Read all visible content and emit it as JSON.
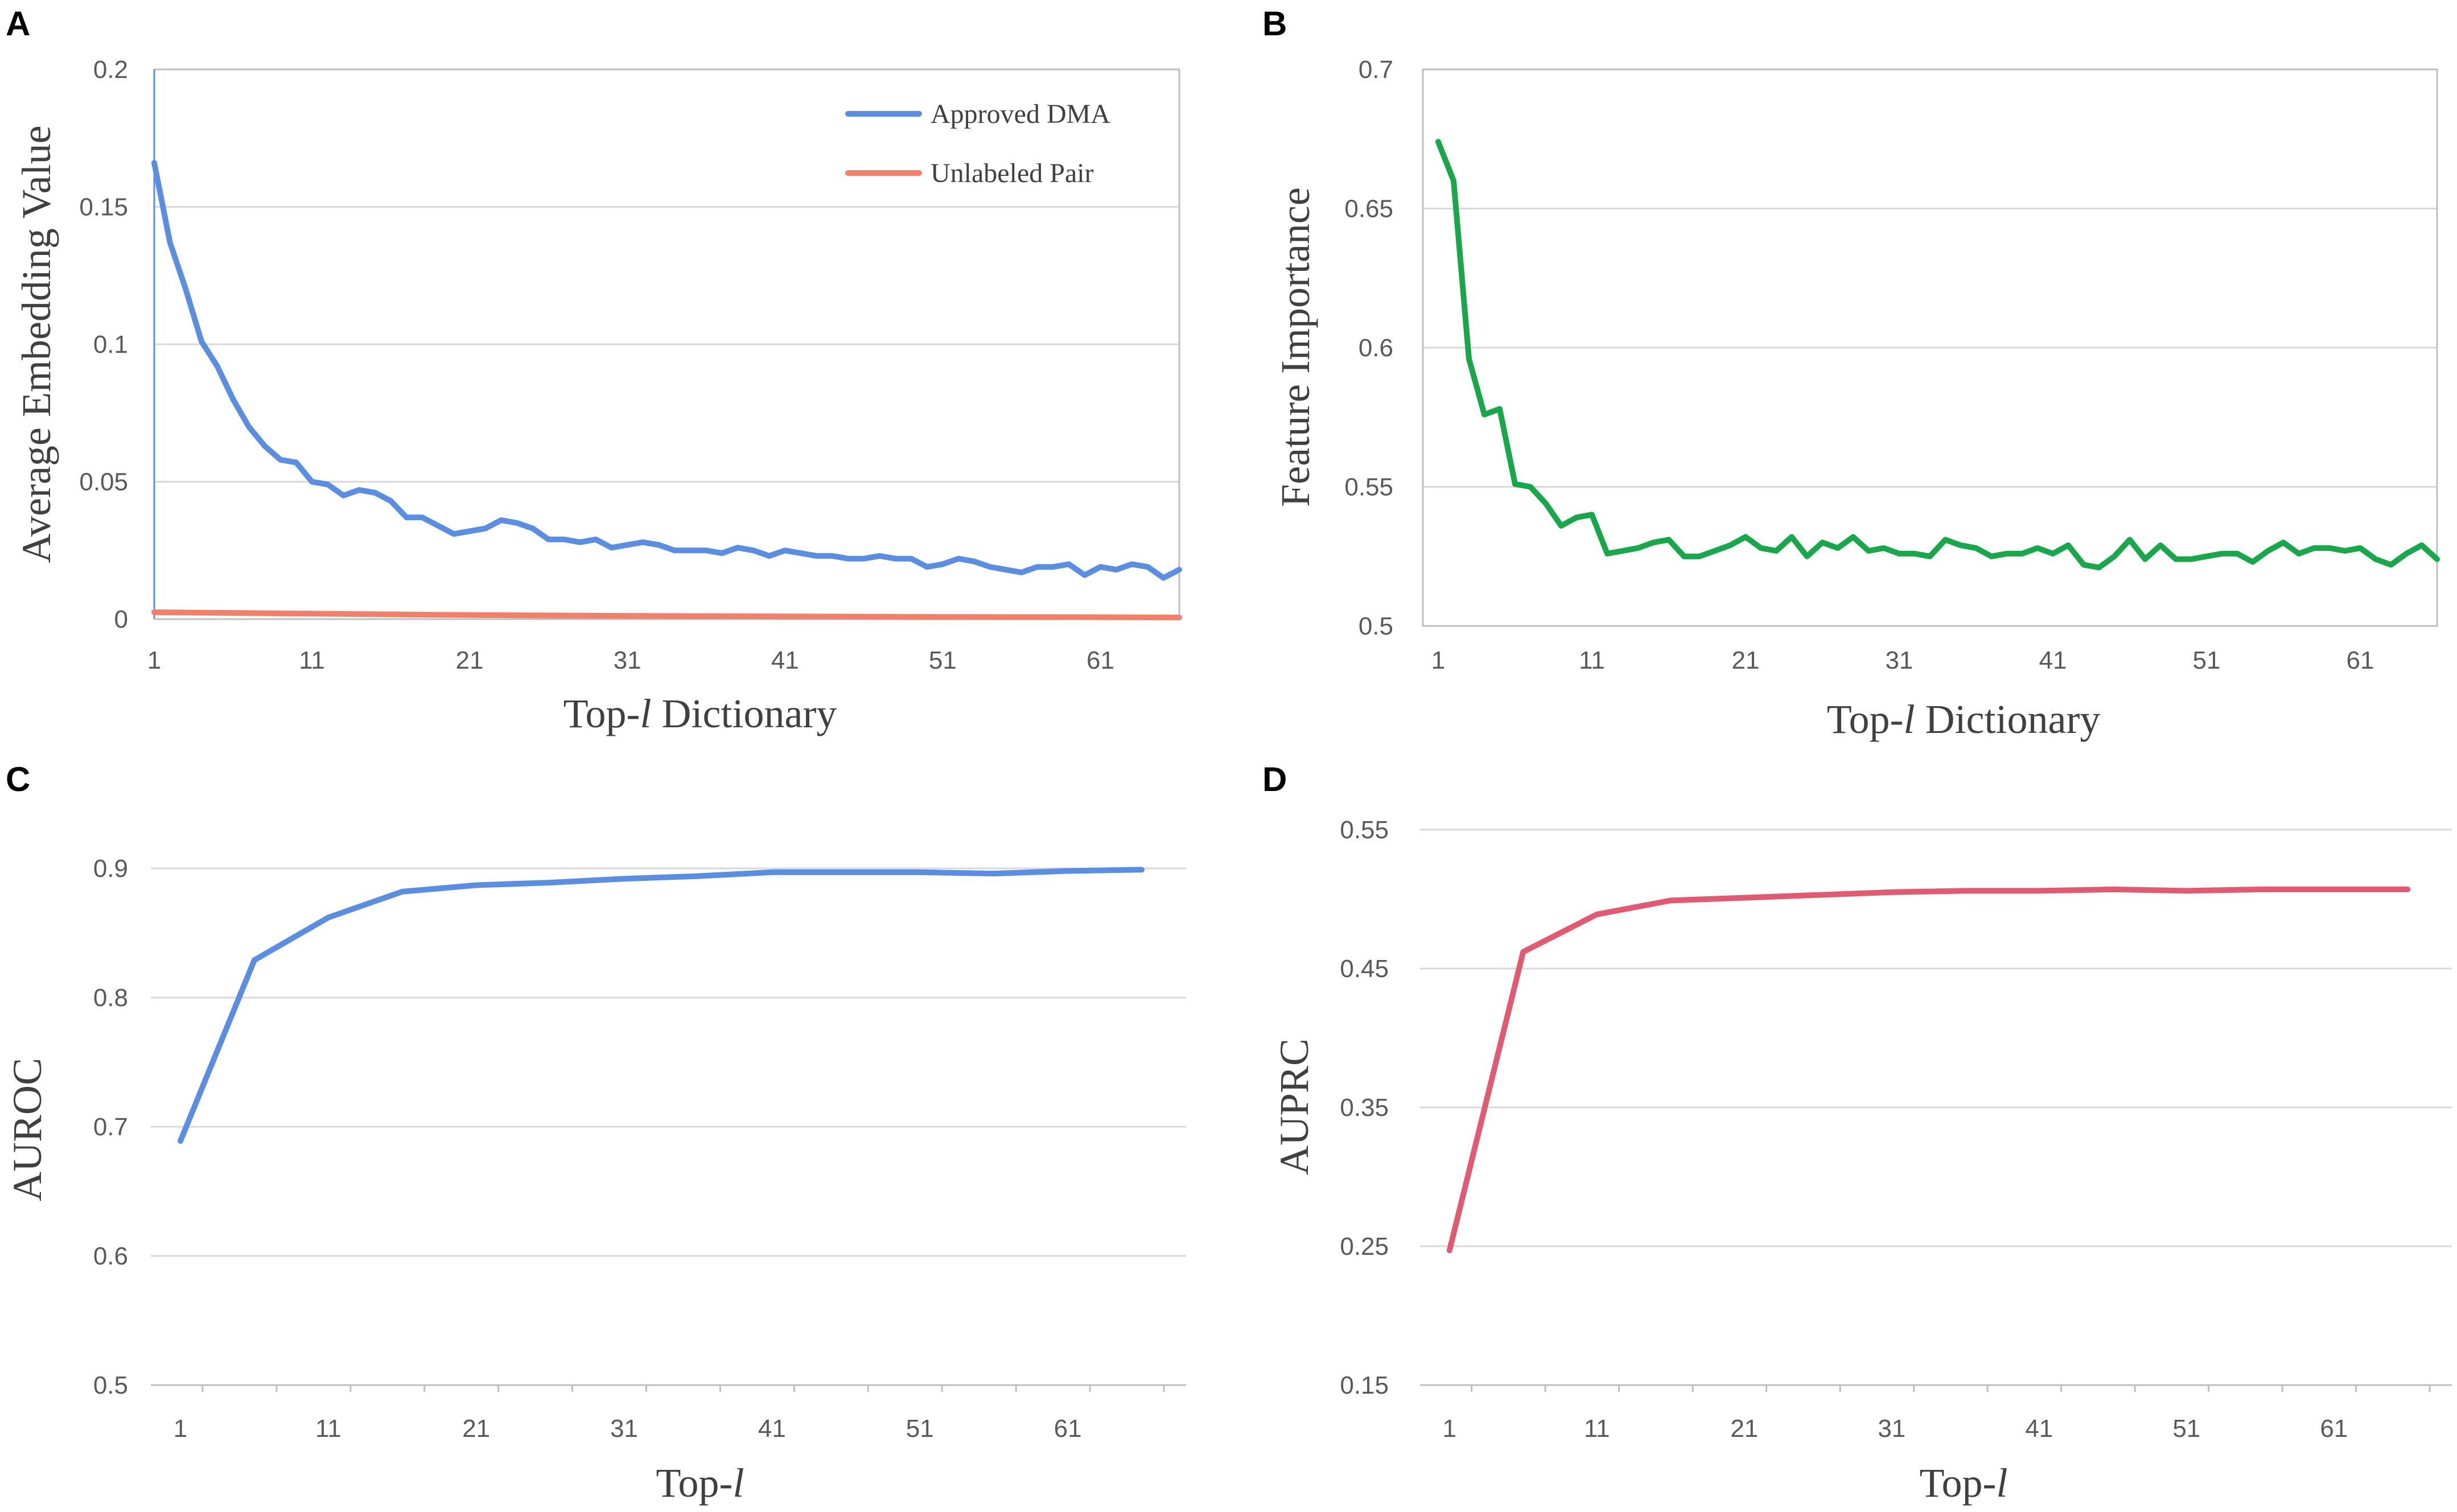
{
  "chart_data": [
    {
      "panel": "A",
      "type": "line",
      "xlabel_prefix": "Top-",
      "xlabel_var": "l",
      "xlabel_suffix": " Dictionary",
      "ylabel": "Average Embedding Value",
      "ylim": [
        0,
        0.2
      ],
      "yticks": [
        "0",
        "0.05",
        "0.1",
        "0.15",
        "0.2"
      ],
      "ytick_values": [
        0,
        0.05,
        0.1,
        0.15,
        0.2
      ],
      "xlim": [
        1,
        66
      ],
      "xticks": [
        "1",
        "11",
        "21",
        "31",
        "41",
        "51",
        "61"
      ],
      "xtick_values": [
        1,
        11,
        21,
        31,
        41,
        51,
        61
      ],
      "legend_position": "top-right",
      "series": [
        {
          "name": "Approved DMA",
          "color": "#5b8ee0",
          "x": [
            1,
            2,
            3,
            4,
            5,
            6,
            7,
            8,
            9,
            10,
            11,
            12,
            13,
            14,
            15,
            16,
            17,
            18,
            19,
            20,
            21,
            22,
            23,
            24,
            25,
            26,
            27,
            28,
            29,
            30,
            31,
            32,
            33,
            34,
            35,
            36,
            37,
            38,
            39,
            40,
            41,
            42,
            43,
            44,
            45,
            46,
            47,
            48,
            49,
            50,
            51,
            52,
            53,
            54,
            55,
            56,
            57,
            58,
            59,
            60,
            61,
            62,
            63,
            64,
            65,
            66
          ],
          "values": [
            0.166,
            0.137,
            0.12,
            0.101,
            0.092,
            0.08,
            0.07,
            0.063,
            0.058,
            0.057,
            0.05,
            0.049,
            0.045,
            0.047,
            0.046,
            0.043,
            0.037,
            0.037,
            0.034,
            0.031,
            0.032,
            0.033,
            0.036,
            0.035,
            0.033,
            0.029,
            0.029,
            0.028,
            0.029,
            0.026,
            0.027,
            0.028,
            0.027,
            0.025,
            0.025,
            0.025,
            0.024,
            0.026,
            0.025,
            0.023,
            0.025,
            0.024,
            0.023,
            0.023,
            0.022,
            0.022,
            0.023,
            0.022,
            0.022,
            0.019,
            0.02,
            0.022,
            0.021,
            0.019,
            0.018,
            0.017,
            0.019,
            0.019,
            0.02,
            0.016,
            0.019,
            0.018,
            0.02,
            0.019,
            0.015,
            0.018
          ]
        },
        {
          "name": "Unlabeled Pair",
          "color": "#f07f6c",
          "x": [
            1,
            11,
            21,
            31,
            41,
            51,
            61,
            66
          ],
          "values": [
            0.0025,
            0.002,
            0.0015,
            0.0012,
            0.001,
            0.0008,
            0.0007,
            0.0006
          ]
        }
      ]
    },
    {
      "panel": "B",
      "type": "line",
      "xlabel_prefix": "Top-",
      "xlabel_var": "l",
      "xlabel_suffix": " Dictionary",
      "ylabel": "Feature Importance",
      "ylim": [
        0.5,
        0.7
      ],
      "yticks": [
        "0.5",
        "0.55",
        "0.6",
        "0.65",
        "0.7"
      ],
      "ytick_values": [
        0.5,
        0.55,
        0.6,
        0.65,
        0.7
      ],
      "xlim": [
        0,
        66
      ],
      "xticks": [
        "1",
        "11",
        "21",
        "31",
        "41",
        "51",
        "61"
      ],
      "xtick_values": [
        1,
        11,
        21,
        31,
        41,
        51,
        61
      ],
      "series": [
        {
          "name": "Feature Importance",
          "color": "#1aa64a",
          "x": [
            1,
            2,
            3,
            4,
            5,
            6,
            7,
            8,
            9,
            10,
            11,
            12,
            13,
            14,
            15,
            16,
            17,
            18,
            19,
            20,
            21,
            22,
            23,
            24,
            25,
            26,
            27,
            28,
            29,
            30,
            31,
            32,
            33,
            34,
            35,
            36,
            37,
            38,
            39,
            40,
            41,
            42,
            43,
            44,
            45,
            46,
            47,
            48,
            49,
            50,
            51,
            52,
            53,
            54,
            55,
            56,
            57,
            58,
            59,
            60,
            61,
            62,
            63,
            64,
            65,
            66
          ],
          "values": [
            0.674,
            0.66,
            0.596,
            0.576,
            0.578,
            0.551,
            0.55,
            0.544,
            0.536,
            0.539,
            0.54,
            0.526,
            0.527,
            0.528,
            0.53,
            0.531,
            0.525,
            0.525,
            0.527,
            0.529,
            0.532,
            0.528,
            0.527,
            0.532,
            0.525,
            0.53,
            0.528,
            0.532,
            0.527,
            0.528,
            0.526,
            0.526,
            0.525,
            0.531,
            0.529,
            0.528,
            0.525,
            0.526,
            0.526,
            0.528,
            0.526,
            0.529,
            0.522,
            0.521,
            0.525,
            0.531,
            0.524,
            0.529,
            0.524,
            0.524,
            0.525,
            0.526,
            0.526,
            0.523,
            0.527,
            0.53,
            0.526,
            0.528,
            0.528,
            0.527,
            0.528,
            0.524,
            0.522,
            0.526,
            0.529,
            0.524
          ]
        }
      ]
    },
    {
      "panel": "C",
      "type": "line",
      "xlabel_prefix": "Top-",
      "xlabel_var": "l",
      "xlabel_suffix": "",
      "ylabel": "AUROC",
      "ylim": [
        0.5,
        0.9
      ],
      "yticks": [
        "0.5",
        "0.6",
        "0.7",
        "0.8",
        "0.9"
      ],
      "ytick_values": [
        0.5,
        0.6,
        0.7,
        0.8,
        0.9
      ],
      "xlim": [
        -1,
        69
      ],
      "xticks": [
        "1",
        "11",
        "21",
        "31",
        "41",
        "51",
        "61"
      ],
      "xtick_values": [
        1,
        11,
        21,
        31,
        41,
        51,
        61
      ],
      "series": [
        {
          "name": "AUROC",
          "color": "#5b8ee0",
          "x": [
            1,
            6,
            11,
            16,
            21,
            26,
            31,
            36,
            41,
            46,
            51,
            56,
            61,
            66
          ],
          "values": [
            0.689,
            0.829,
            0.862,
            0.882,
            0.887,
            0.889,
            0.892,
            0.894,
            0.897,
            0.897,
            0.897,
            0.896,
            0.898,
            0.899
          ]
        }
      ]
    },
    {
      "panel": "D",
      "type": "line",
      "xlabel_prefix": "Top-",
      "xlabel_var": "l",
      "xlabel_suffix": "",
      "ylabel": "AUPRC",
      "ylim": [
        0.15,
        0.55
      ],
      "yticks": [
        "0.15",
        "0.25",
        "0.35",
        "0.45",
        "0.55"
      ],
      "ytick_values": [
        0.15,
        0.25,
        0.35,
        0.45,
        0.55
      ],
      "xlim": [
        -1,
        69
      ],
      "xticks": [
        "1",
        "11",
        "21",
        "31",
        "41",
        "51",
        "61"
      ],
      "xtick_values": [
        1,
        11,
        21,
        31,
        41,
        51,
        61
      ],
      "series": [
        {
          "name": "AUPRC",
          "color": "#e05a72",
          "x": [
            1,
            6,
            11,
            16,
            21,
            26,
            31,
            36,
            41,
            46,
            51,
            56,
            61,
            66
          ],
          "values": [
            0.247,
            0.462,
            0.489,
            0.499,
            0.501,
            0.503,
            0.505,
            0.506,
            0.506,
            0.507,
            0.506,
            0.507,
            0.507,
            0.507
          ]
        }
      ]
    }
  ]
}
